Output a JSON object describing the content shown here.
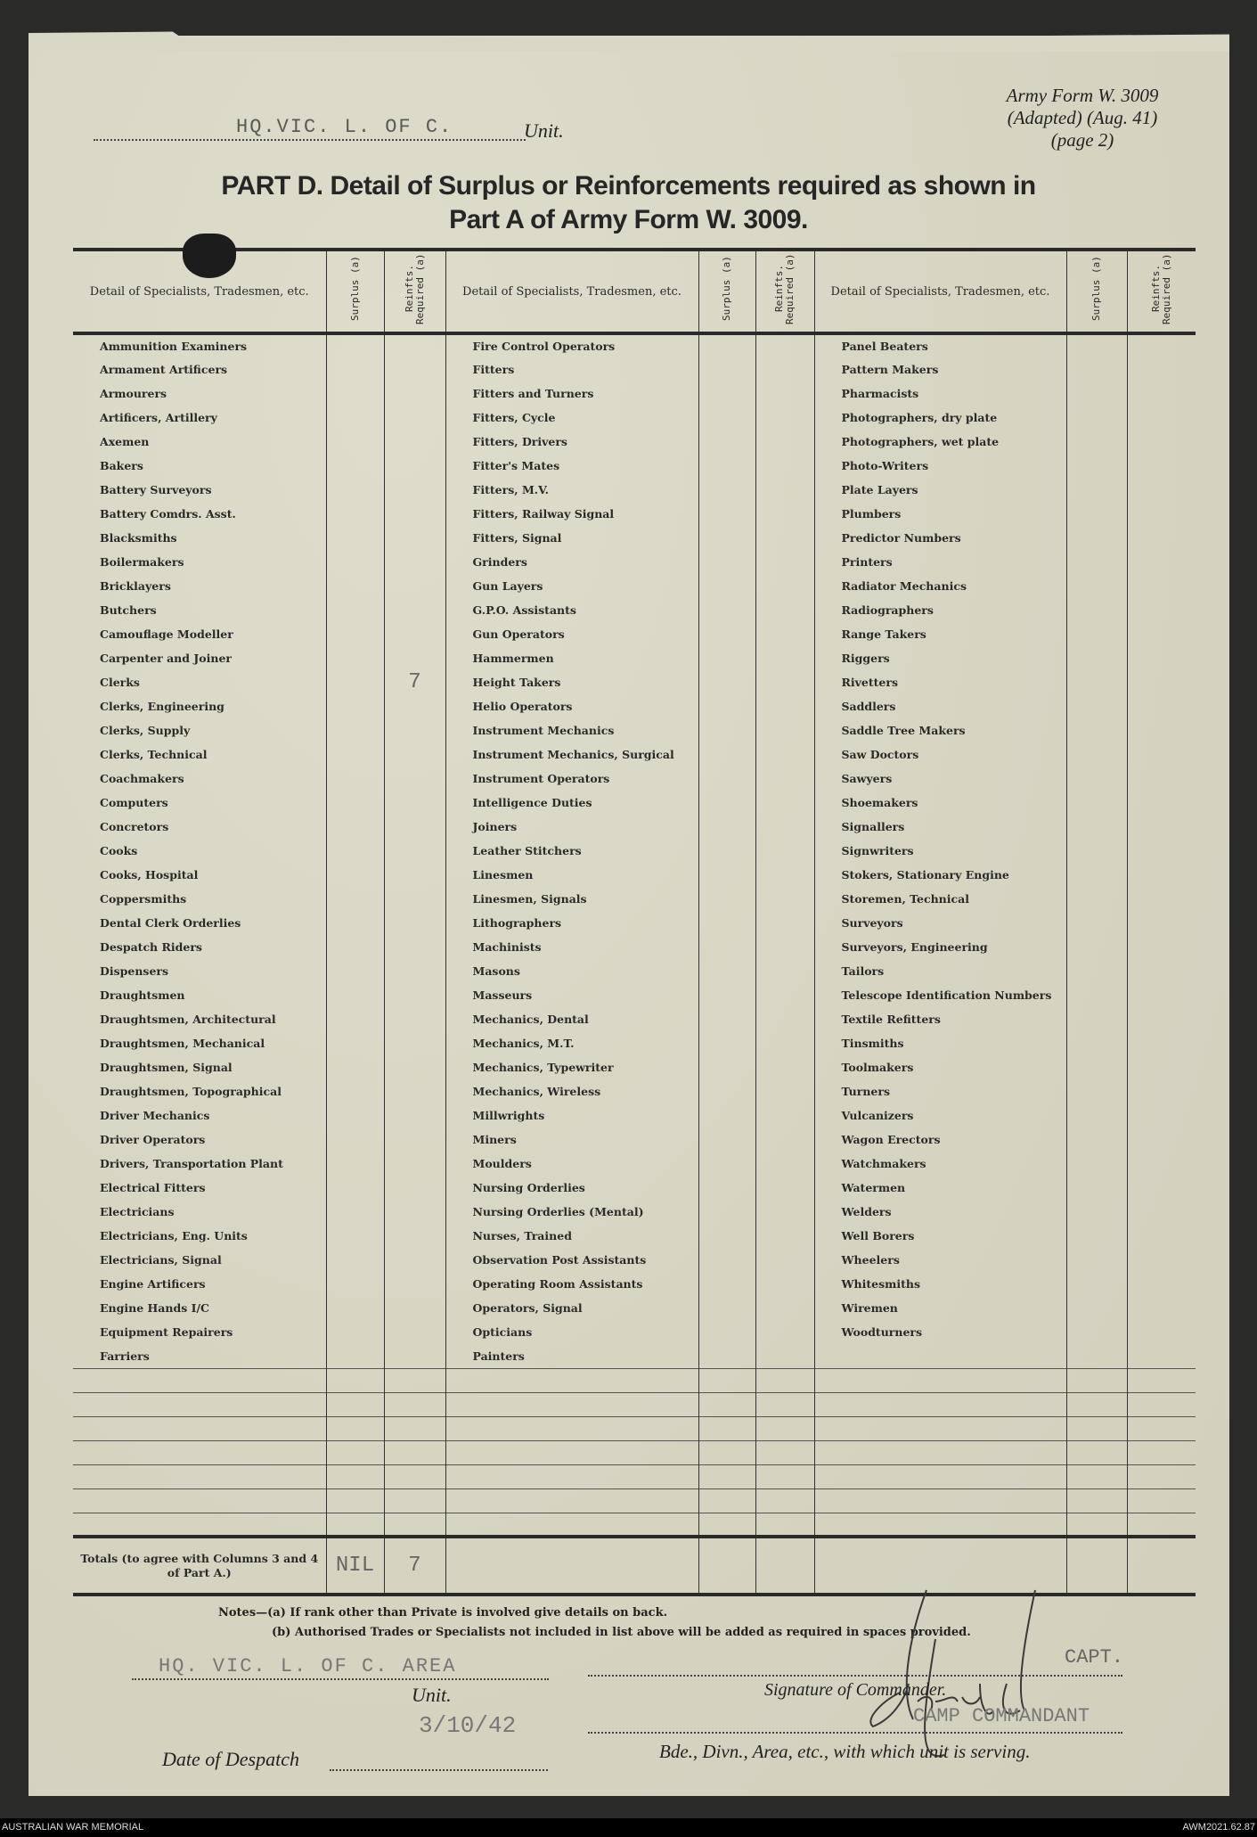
{
  "header": {
    "unit_value": "HQ.VIC. L. OF C.",
    "unit_label": "Unit.",
    "form_ref": [
      "Army Form W. 3009",
      "(Adapted) (Aug. 41)",
      "(page 2)"
    ],
    "title_line1": "PART D.  Detail of Surplus or Reinforcements required as shown in",
    "title_line2": "Part A of Army Form W. 3009."
  },
  "table": {
    "col_headers": {
      "detail": "Detail of Specialists, Tradesmen, etc.",
      "surplus": "Surplus (a)",
      "reinfts": "Reinfts. Required (a)"
    },
    "columns": [
      [
        "Ammunition Examiners",
        "Armament Artificers",
        "Armourers",
        "Artificers, Artillery",
        "Axemen",
        "Bakers",
        "Battery Surveyors",
        "Battery Comdrs. Asst.",
        "Blacksmiths",
        "Boilermakers",
        "Bricklayers",
        "Butchers",
        "Camouflage Modeller",
        "Carpenter and Joiner",
        "Clerks",
        "Clerks, Engineering",
        "Clerks, Supply",
        "Clerks, Technical",
        "Coachmakers",
        "Computers",
        "Concretors",
        "Cooks",
        "Cooks, Hospital",
        "Coppersmiths",
        "Dental Clerk Orderlies",
        "Despatch Riders",
        "Dispensers",
        "Draughtsmen",
        "Draughtsmen, Architectural",
        "Draughtsmen, Mechanical",
        "Draughtsmen, Signal",
        "Draughtsmen, Topographical",
        "Driver Mechanics",
        "Driver Operators",
        "Drivers, Transportation Plant",
        "Electrical Fitters",
        "Electricians",
        "Electricians, Eng. Units",
        "Electricians, Signal",
        "Engine Artificers",
        "Engine Hands I/C",
        "Equipment Repairers",
        "Farriers"
      ],
      [
        "Fire Control Operators",
        "Fitters",
        "Fitters and Turners",
        "Fitters, Cycle",
        "Fitters, Drivers",
        "Fitter's Mates",
        "Fitters, M.V.",
        "Fitters, Railway Signal",
        "Fitters, Signal",
        "Grinders",
        "Gun Layers",
        "G.P.O. Assistants",
        "Gun Operators",
        "Hammermen",
        "Height Takers",
        "Helio Operators",
        "Instrument Mechanics",
        "Instrument Mechanics, Surgical",
        "Instrument Operators",
        "Intelligence Duties",
        "Joiners",
        "Leather Stitchers",
        "Linesmen",
        "Linesmen, Signals",
        "Lithographers",
        "Machinists",
        "Masons",
        "Masseurs",
        "Mechanics, Dental",
        "Mechanics, M.T.",
        "Mechanics, Typewriter",
        "Mechanics, Wireless",
        "Millwrights",
        "Miners",
        "Moulders",
        "Nursing Orderlies",
        "Nursing Orderlies (Mental)",
        "Nurses, Trained",
        "Observation Post Assistants",
        "Operating Room Assistants",
        "Operators, Signal",
        "Opticians",
        "Painters"
      ],
      [
        "Panel Beaters",
        "Pattern Makers",
        "Pharmacists",
        "Photographers, dry plate",
        "Photographers, wet plate",
        "Photo-Writers",
        "Plate Layers",
        "Plumbers",
        "Predictor Numbers",
        "Printers",
        "Radiator Mechanics",
        "Radiographers",
        "Range Takers",
        "Riggers",
        "Rivetters",
        "Saddlers",
        "Saddle Tree Makers",
        "Saw Doctors",
        "Sawyers",
        "Shoemakers",
        "Signallers",
        "Signwriters",
        "Stokers, Stationary Engine",
        "Storemen, Technical",
        "Surveyors",
        "Surveyors, Engineering",
        "Tailors",
        "Telescope Identification Numbers",
        "Textile Refitters",
        "Tinsmiths",
        "Toolmakers",
        "Turners",
        "Vulcanizers",
        "Wagon Erectors",
        "Watchmakers",
        "Watermen",
        "Welders",
        "Well Borers",
        "Wheelers",
        "Whitesmiths",
        "Wiremen",
        "Woodturners"
      ]
    ],
    "entries": [
      {
        "column": 0,
        "row": "Clerks",
        "reinfts_required": "7"
      }
    ],
    "totals_label": "Totals (to agree with Columns 3 and 4 of Part A.)",
    "totals_surplus": "NIL",
    "totals_reinfts": "7"
  },
  "notes": {
    "a": "Notes—(a) If rank other than Private is involved give details on back.",
    "b": "(b) Authorised Trades or Specialists not included in list above will be added as required in spaces provided."
  },
  "footer": {
    "unit_value": "HQ. VIC. L. OF C. AREA",
    "unit_label": "Unit.",
    "date_label": "Date of Despatch",
    "date_value": "3/10/42",
    "signature": "Ga Jones Lt",
    "rank": "CAPT.",
    "signature_label": "Signature of Commander.",
    "appointment": "CAMP COMMANDANT",
    "serving_label": "Bde., Divn., Area, etc., with which unit is serving."
  },
  "archive": {
    "left": "AUSTRALIAN WAR MEMORIAL",
    "right": "AWM2021.62.87"
  }
}
